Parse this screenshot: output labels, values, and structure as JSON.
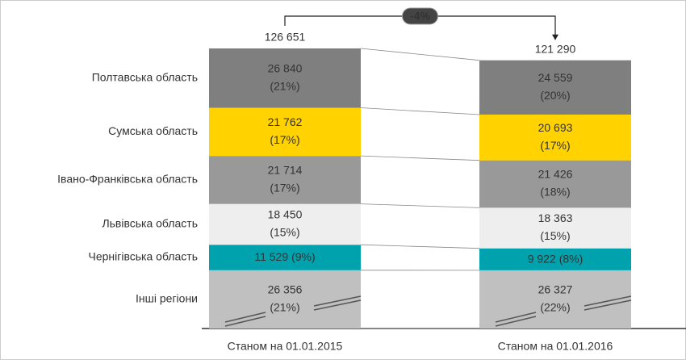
{
  "chart_data": {
    "type": "bar",
    "stacked": true,
    "categories": [
      "Станом на 01.01.2015",
      "Станом на 01.01.2016"
    ],
    "totals": [
      126651,
      121290
    ],
    "total_labels": [
      "126 651",
      "121 290"
    ],
    "change_label": "-4%",
    "series": [
      {
        "name": "Полтавська область",
        "color": "#7f7f7f",
        "values": [
          26840,
          24559
        ],
        "value_labels": [
          "26 840",
          "24 559"
        ],
        "share_labels": [
          "(21%)",
          "(20%)"
        ]
      },
      {
        "name": "Сумська область",
        "color": "#ffd200",
        "values": [
          21762,
          20693
        ],
        "value_labels": [
          "21 762",
          "20 693"
        ],
        "share_labels": [
          "(17%)",
          "(17%)"
        ]
      },
      {
        "name": "Івано-Франківська область",
        "color": "#999999",
        "values": [
          21714,
          21426
        ],
        "value_labels": [
          "21 714",
          "21 426"
        ],
        "share_labels": [
          "(17%)",
          "(18%)"
        ]
      },
      {
        "name": "Львівська область",
        "color": "#eeeeee",
        "values": [
          18450,
          18363
        ],
        "value_labels": [
          "18 450",
          "18 363"
        ],
        "share_labels": [
          "(15%)",
          "(15%)"
        ]
      },
      {
        "name": "Чернігівська область",
        "color": "#00a3ad",
        "values": [
          11529,
          9922
        ],
        "value_labels": [
          "11 529",
          "9 922"
        ],
        "share_labels": [
          "(9%)",
          "(8%)"
        ]
      },
      {
        "name": "Інші регіони",
        "color": "#c0c0c0",
        "values": [
          26356,
          26327
        ],
        "value_labels": [
          "26 356",
          "26 327"
        ],
        "share_labels": [
          "(21%)",
          "(22%)"
        ]
      }
    ]
  }
}
